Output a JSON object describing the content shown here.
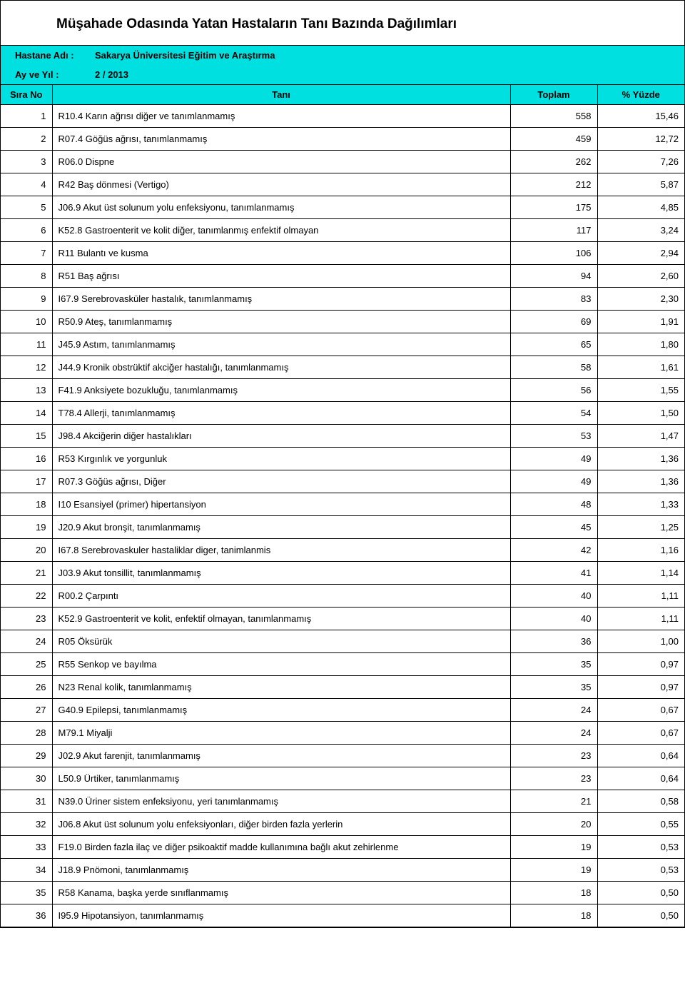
{
  "report": {
    "title": "Müşahade Odasında Yatan Hastaların Tanı Bazında Dağılımları",
    "hospital_label": "Hastane Adı :",
    "hospital_value": "Sakarya Üniversitesi Eğitim ve Araştırma",
    "period_label": "Ay ve Yıl :",
    "period_value": "2 / 2013",
    "header_bg": "#00e0e0",
    "border_color": "#000000",
    "columns": {
      "no": "Sıra No",
      "diag": "Tanı",
      "total": "Toplam",
      "pct": "% Yüzde"
    },
    "rows": [
      {
        "no": "1",
        "diag": "R10.4 Karın ağrısı diğer ve tanımlanmamış",
        "total": "558",
        "pct": "15,46"
      },
      {
        "no": "2",
        "diag": "R07.4 Göğüs ağrısı, tanımlanmamış",
        "total": "459",
        "pct": "12,72"
      },
      {
        "no": "3",
        "diag": "R06.0 Dispne",
        "total": "262",
        "pct": "7,26"
      },
      {
        "no": "4",
        "diag": "R42 Baş dönmesi (Vertigo)",
        "total": "212",
        "pct": "5,87"
      },
      {
        "no": "5",
        "diag": "J06.9 Akut üst solunum yolu enfeksiyonu, tanımlanmamış",
        "total": "175",
        "pct": "4,85"
      },
      {
        "no": "6",
        "diag": "K52.8 Gastroenterit ve kolit diğer, tanımlanmış enfektif olmayan",
        "total": "117",
        "pct": "3,24"
      },
      {
        "no": "7",
        "diag": "R11 Bulantı ve kusma",
        "total": "106",
        "pct": "2,94"
      },
      {
        "no": "8",
        "diag": "R51 Baş ağrısı",
        "total": "94",
        "pct": "2,60"
      },
      {
        "no": "9",
        "diag": "I67.9 Serebrovasküler hastalık, tanımlanmamış",
        "total": "83",
        "pct": "2,30"
      },
      {
        "no": "10",
        "diag": "R50.9 Ateş, tanımlanmamış",
        "total": "69",
        "pct": "1,91"
      },
      {
        "no": "11",
        "diag": "J45.9 Astım, tanımlanmamış",
        "total": "65",
        "pct": "1,80"
      },
      {
        "no": "12",
        "diag": "J44.9 Kronik obstrüktif akciğer hastalığı, tanımlanmamış",
        "total": "58",
        "pct": "1,61"
      },
      {
        "no": "13",
        "diag": "F41.9 Anksiyete bozukluğu, tanımlanmamış",
        "total": "56",
        "pct": "1,55"
      },
      {
        "no": "14",
        "diag": "T78.4 Allerji, tanımlanmamış",
        "total": "54",
        "pct": "1,50"
      },
      {
        "no": "15",
        "diag": "J98.4 Akciğerin diğer hastalıkları",
        "total": "53",
        "pct": "1,47"
      },
      {
        "no": "16",
        "diag": "R53 Kırgınlık ve yorgunluk",
        "total": "49",
        "pct": "1,36"
      },
      {
        "no": "17",
        "diag": "R07.3 Göğüs ağrısı, Diğer",
        "total": "49",
        "pct": "1,36"
      },
      {
        "no": "18",
        "diag": "I10 Esansiyel (primer) hipertansiyon",
        "total": "48",
        "pct": "1,33"
      },
      {
        "no": "19",
        "diag": "J20.9 Akut bronşit, tanımlanmamış",
        "total": "45",
        "pct": "1,25"
      },
      {
        "no": "20",
        "diag": "I67.8 Serebrovaskuler hastaliklar diger, tanimlanmis",
        "total": "42",
        "pct": "1,16"
      },
      {
        "no": "21",
        "diag": "J03.9 Akut tonsillit, tanımlanmamış",
        "total": "41",
        "pct": "1,14"
      },
      {
        "no": "22",
        "diag": "R00.2 Çarpıntı",
        "total": "40",
        "pct": "1,11"
      },
      {
        "no": "23",
        "diag": "K52.9 Gastroenterit ve kolit, enfektif olmayan, tanımlanmamış",
        "total": "40",
        "pct": "1,11"
      },
      {
        "no": "24",
        "diag": "R05 Öksürük",
        "total": "36",
        "pct": "1,00"
      },
      {
        "no": "25",
        "diag": "R55 Senkop ve bayılma",
        "total": "35",
        "pct": "0,97"
      },
      {
        "no": "26",
        "diag": "N23 Renal kolik, tanımlanmamış",
        "total": "35",
        "pct": "0,97"
      },
      {
        "no": "27",
        "diag": "G40.9 Epilepsi, tanımlanmamış",
        "total": "24",
        "pct": "0,67"
      },
      {
        "no": "28",
        "diag": "M79.1 Miyalji",
        "total": "24",
        "pct": "0,67"
      },
      {
        "no": "29",
        "diag": "J02.9 Akut farenjit, tanımlanmamış",
        "total": "23",
        "pct": "0,64"
      },
      {
        "no": "30",
        "diag": "L50.9 Ürtiker, tanımlanmamış",
        "total": "23",
        "pct": "0,64"
      },
      {
        "no": "31",
        "diag": "N39.0 Üriner sistem enfeksiyonu, yeri tanımlanmamış",
        "total": "21",
        "pct": "0,58"
      },
      {
        "no": "32",
        "diag": "J06.8 Akut üst solunum yolu enfeksiyonları, diğer birden fazla yerlerin",
        "total": "20",
        "pct": "0,55"
      },
      {
        "no": "33",
        "diag": "F19.0 Birden fazla ilaç ve diğer psikoaktif madde kullanımına bağlı akut zehirlenme",
        "total": "19",
        "pct": "0,53"
      },
      {
        "no": "34",
        "diag": "J18.9 Pnömoni, tanımlanmamış",
        "total": "19",
        "pct": "0,53"
      },
      {
        "no": "35",
        "diag": "R58 Kanama, başka yerde sınıflanmamış",
        "total": "18",
        "pct": "0,50"
      },
      {
        "no": "36",
        "diag": "I95.9 Hipotansiyon, tanımlanmamış",
        "total": "18",
        "pct": "0,50"
      }
    ]
  }
}
